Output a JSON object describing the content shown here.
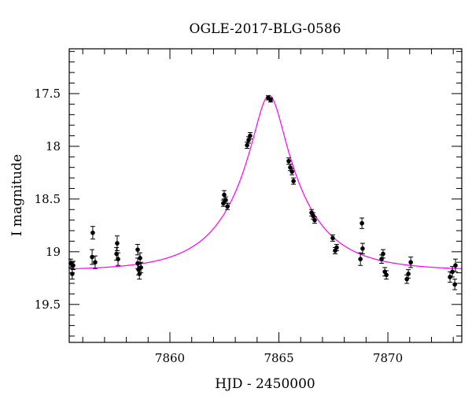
{
  "chart_data": {
    "type": "scatter",
    "title": "OGLE-2017-BLG-0586",
    "xlabel": "HJD - 2450000",
    "ylabel": "I magnitude",
    "xlim": [
      7855.38,
      7873.39
    ],
    "ylim": [
      19.86,
      17.075
    ],
    "y_inverted": true,
    "xticks": [
      7860,
      7865,
      7870
    ],
    "xtick_labels": [
      "7860",
      "7865",
      "7870"
    ],
    "yticks": [
      17.5,
      18,
      18.5,
      19,
      19.5
    ],
    "ytick_labels": [
      "17.5",
      "18",
      "18.5",
      "19",
      "19.5"
    ],
    "grid": false,
    "series": [
      {
        "name": "data",
        "color": "#000000",
        "points": [
          [
            7855.45,
            19.11,
            0.04
          ],
          [
            7855.52,
            19.21,
            0.05
          ],
          [
            7855.56,
            19.13,
            0.04
          ],
          [
            7856.46,
            18.82,
            0.06
          ],
          [
            7856.43,
            19.05,
            0.07
          ],
          [
            7856.57,
            19.1,
            0.06
          ],
          [
            7857.58,
            18.92,
            0.07
          ],
          [
            7857.55,
            19.02,
            0.06
          ],
          [
            7857.62,
            19.07,
            0.06
          ],
          [
            7858.52,
            18.98,
            0.05
          ],
          [
            7858.63,
            19.06,
            0.05
          ],
          [
            7858.52,
            19.11,
            0.05
          ],
          [
            7858.56,
            19.17,
            0.05
          ],
          [
            7858.6,
            19.21,
            0.05
          ],
          [
            7858.67,
            19.15,
            0.05
          ],
          [
            7862.49,
            18.46,
            0.04
          ],
          [
            7862.56,
            18.51,
            0.03
          ],
          [
            7862.45,
            18.54,
            0.03
          ],
          [
            7862.64,
            18.57,
            0.03
          ],
          [
            7863.54,
            17.99,
            0.03
          ],
          [
            7863.61,
            17.94,
            0.03
          ],
          [
            7863.68,
            17.9,
            0.03
          ],
          [
            7864.51,
            17.54,
            0.02
          ],
          [
            7864.62,
            17.56,
            0.02
          ],
          [
            7865.45,
            18.14,
            0.03
          ],
          [
            7865.52,
            18.2,
            0.03
          ],
          [
            7865.6,
            18.24,
            0.03
          ],
          [
            7865.67,
            18.33,
            0.03
          ],
          [
            7866.5,
            18.63,
            0.03
          ],
          [
            7866.57,
            18.66,
            0.03
          ],
          [
            7866.64,
            18.7,
            0.03
          ],
          [
            7867.47,
            18.87,
            0.03
          ],
          [
            7867.58,
            18.99,
            0.03
          ],
          [
            7867.65,
            18.96,
            0.03
          ],
          [
            7868.81,
            18.73,
            0.05
          ],
          [
            7868.84,
            18.97,
            0.05
          ],
          [
            7868.74,
            19.07,
            0.06
          ],
          [
            7869.71,
            19.07,
            0.04
          ],
          [
            7869.78,
            19.02,
            0.04
          ],
          [
            7869.86,
            19.19,
            0.04
          ],
          [
            7869.93,
            19.22,
            0.04
          ],
          [
            7870.87,
            19.26,
            0.04
          ],
          [
            7870.94,
            19.21,
            0.04
          ],
          [
            7871.05,
            19.1,
            0.05
          ],
          [
            7872.85,
            19.24,
            0.05
          ],
          [
            7872.96,
            19.19,
            0.05
          ],
          [
            7873.07,
            19.31,
            0.05
          ],
          [
            7873.1,
            19.13,
            0.06
          ]
        ]
      },
      {
        "name": "model",
        "type": "line",
        "color": "#ff00ff",
        "model": "point-lens",
        "params": {
          "t0": 7864.55,
          "u0": 0.22,
          "tE": 3.0,
          "baseline": 19.18
        }
      }
    ]
  }
}
